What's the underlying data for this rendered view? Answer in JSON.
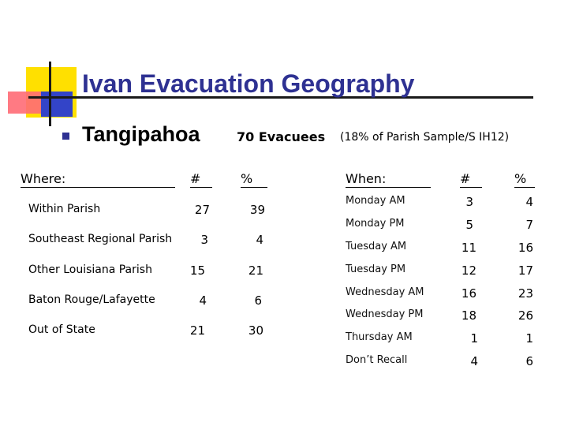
{
  "title": "Ivan Evacuation Geography",
  "subtitle": "Tangipahoa",
  "evacuees": "70 Evacuees",
  "sample_note": "(18% of Parish Sample/S IH12)",
  "where": {
    "header": "Where:",
    "num_header": "#",
    "pct_header": "%",
    "rows": [
      {
        "label": "Within Parish",
        "count": "27",
        "pct": "39"
      },
      {
        "label": "Southeast Regional Parish",
        "count": "3",
        "pct": "4"
      },
      {
        "label": "Other Louisiana Parish",
        "count": "15",
        "pct": "21"
      },
      {
        "label": "Baton Rouge/Lafayette",
        "count": "4",
        "pct": "6"
      },
      {
        "label": "Out of State",
        "count": "21",
        "pct": "30"
      }
    ]
  },
  "when": {
    "header": "When:",
    "num_header": "#",
    "pct_header": "%",
    "rows": [
      {
        "label": "Monday AM",
        "count": "3",
        "pct": "4"
      },
      {
        "label": "Monday PM",
        "count": "5",
        "pct": "7"
      },
      {
        "label": "Tuesday AM",
        "count": "11",
        "pct": "16"
      },
      {
        "label": "Tuesday PM",
        "count": "12",
        "pct": "17"
      },
      {
        "label": "Wednesday AM",
        "count": "16",
        "pct": "23"
      },
      {
        "label": "Wednesday PM",
        "count": "18",
        "pct": "26"
      },
      {
        "label": "Thursday AM",
        "count": "1",
        "pct": "1"
      },
      {
        "label": "Don’t Recall",
        "count": "4",
        "pct": "6"
      }
    ]
  },
  "colors": {
    "title": "#2E3192",
    "accent_yellow": "#FFE000",
    "accent_red": "#FF6B75",
    "accent_blue": "#3344C8"
  }
}
